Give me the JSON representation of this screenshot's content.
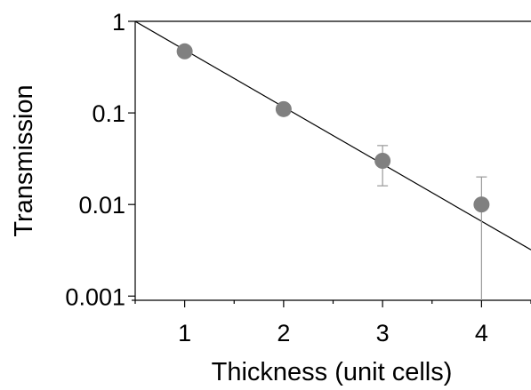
{
  "chart_data": {
    "type": "scatter",
    "xlabel": "Thickness (unit cells)",
    "ylabel": "Transmission",
    "xlim": [
      0.5,
      4.5
    ],
    "ylim": [
      0.0009,
      1
    ],
    "yscale": "log",
    "x_ticks": [
      1,
      2,
      3,
      4
    ],
    "x_tick_labels": [
      "1",
      "2",
      "3",
      "4"
    ],
    "y_ticks": [
      0.001,
      0.01,
      0.1,
      1
    ],
    "y_tick_labels": [
      "0.001",
      "0.01",
      "0.1",
      "1"
    ],
    "grid": false,
    "legend": "none",
    "points": [
      {
        "x": 1,
        "y": 0.47,
        "err_low": null,
        "err_high": null
      },
      {
        "x": 2,
        "y": 0.11,
        "err_low": null,
        "err_high": null
      },
      {
        "x": 3,
        "y": 0.03,
        "err_low": 0.016,
        "err_high": 0.044
      },
      {
        "x": 4,
        "y": 0.01,
        "err_low": 0.0009,
        "err_high": 0.02
      }
    ],
    "fit_line": {
      "x": [
        0.5,
        4.5
      ],
      "y": [
        1.0,
        0.0032
      ]
    },
    "marker_color": "#808080",
    "errorbar_color": "#999999",
    "line_color": "#000000"
  }
}
